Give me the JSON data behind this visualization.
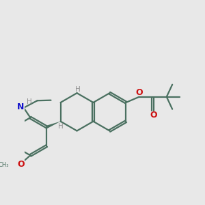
{
  "bg_color": "#e8e8e8",
  "bond_color": "#4a7060",
  "N_color": "#1010cc",
  "O_color": "#cc1010",
  "H_color": "#909090",
  "lw": 1.6,
  "dbo": 0.055,
  "xlim": [
    -1.0,
    8.5
  ],
  "ylim": [
    -1.5,
    5.5
  ]
}
